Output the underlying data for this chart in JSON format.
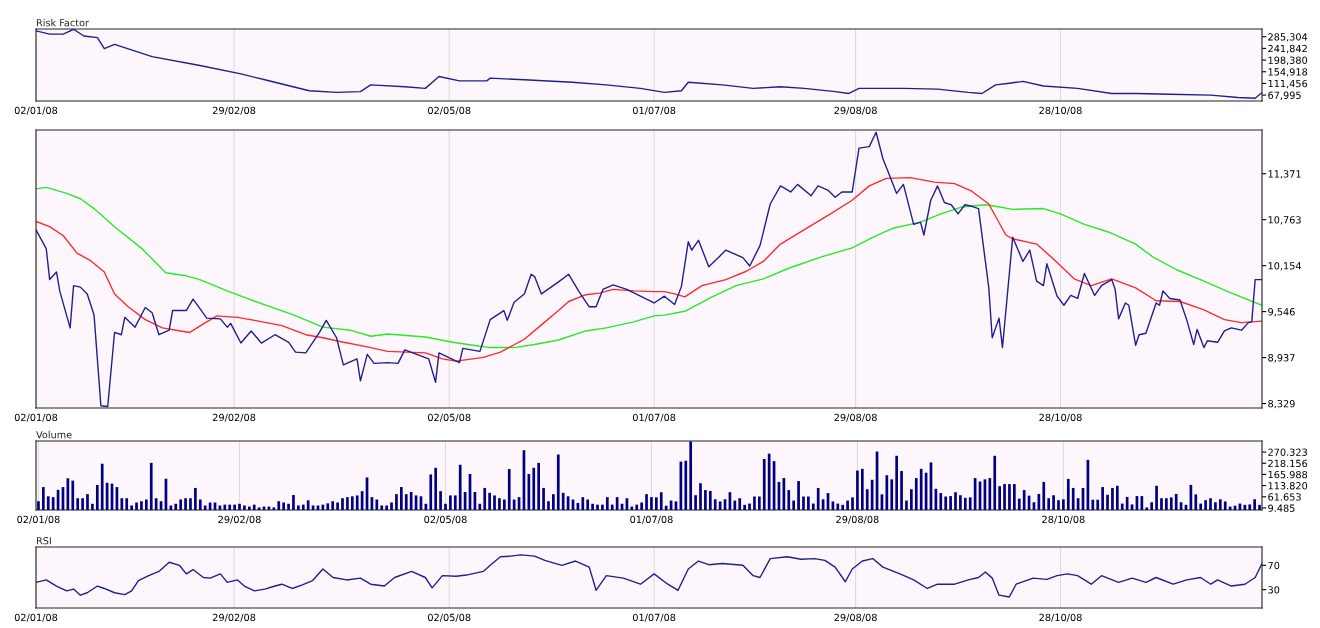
{
  "chart_data": [
    {
      "type": "line",
      "title": "Risk Factor",
      "grid": "x",
      "xlim": [
        "2008-01-02",
        "2008-12-26"
      ],
      "ylim": [
        46000,
        314000
      ],
      "xticks": [
        {
          "value": "2008-01-02",
          "label": "02/01/08"
        },
        {
          "value": "2008-02-29",
          "label": "29/02/08"
        },
        {
          "value": "2008-05-02",
          "label": "02/05/08"
        },
        {
          "value": "2008-07-01",
          "label": "01/07/08"
        },
        {
          "value": "2008-08-29",
          "label": "29/08/08"
        },
        {
          "value": "2008-10-28",
          "label": "28/10/08"
        }
      ],
      "yticks": [
        {
          "value": 67995,
          "label": "67,995"
        },
        {
          "value": 111456,
          "label": "111,456"
        },
        {
          "value": 154918,
          "label": "154,918"
        },
        {
          "value": 198380,
          "label": "198,380"
        },
        {
          "value": 241842,
          "label": "241,842"
        },
        {
          "value": 285304,
          "label": "285,304"
        }
      ],
      "series": [
        {
          "color": "#1f1f8f",
          "x": [
            "2008-01-02",
            "2008-01-06",
            "2008-01-10",
            "2008-01-13",
            "2008-01-16",
            "2008-01-20",
            "2008-01-22",
            "2008-01-25",
            "2008-02-05",
            "2008-02-19",
            "2008-03-02",
            "2008-03-09",
            "2008-03-22",
            "2008-03-30",
            "2008-04-06",
            "2008-04-09",
            "2008-04-19",
            "2008-04-25",
            "2008-04-29",
            "2008-05-05",
            "2008-05-13",
            "2008-05-14",
            "2008-05-24",
            "2008-06-07",
            "2008-06-17",
            "2008-06-27",
            "2008-07-04",
            "2008-07-09",
            "2008-07-11",
            "2008-07-21",
            "2008-07-30",
            "2008-08-07",
            "2008-08-14",
            "2008-08-23",
            "2008-08-27",
            "2008-08-30",
            "2008-09-12",
            "2008-09-22",
            "2008-10-01",
            "2008-10-05",
            "2008-10-09",
            "2008-10-13",
            "2008-10-17",
            "2008-10-23",
            "2008-11-02",
            "2008-11-12",
            "2008-11-19",
            "2008-11-29",
            "2008-12-11",
            "2008-12-19",
            "2008-12-24",
            "2008-12-26"
          ],
          "values": [
            307000,
            295000,
            295000,
            313000,
            288000,
            282000,
            241000,
            257000,
            211000,
            178000,
            147000,
            125000,
            84000,
            78000,
            81000,
            106000,
            99000,
            93000,
            137000,
            121000,
            121000,
            131000,
            125000,
            116000,
            106000,
            93000,
            78000,
            84000,
            116000,
            106000,
            93000,
            99000,
            93000,
            81000,
            74000,
            93000,
            93000,
            90000,
            78000,
            74000,
            106000,
            112000,
            119000,
            102000,
            93000,
            74000,
            74000,
            71000,
            68000,
            59000,
            56000,
            78000
          ]
        }
      ]
    },
    {
      "type": "line",
      "grid": "x",
      "xlim": [
        "2008-01-02",
        "2008-12-26"
      ],
      "ylim": [
        8270,
        11950
      ],
      "xticks": [
        {
          "value": "2008-01-02",
          "label": "02/01/08"
        },
        {
          "value": "2008-02-29",
          "label": "29/02/08"
        },
        {
          "value": "2008-05-02",
          "label": "02/05/08"
        },
        {
          "value": "2008-07-01",
          "label": "01/07/08"
        },
        {
          "value": "2008-08-29",
          "label": "29/08/08"
        },
        {
          "value": "2008-10-28",
          "label": "28/10/08"
        }
      ],
      "yticks": [
        {
          "value": 8329,
          "label": "8,329"
        },
        {
          "value": 8937,
          "label": "8,937"
        },
        {
          "value": 9546,
          "label": "9,546"
        },
        {
          "value": 10154,
          "label": "10,154"
        },
        {
          "value": 10763,
          "label": "10,763"
        },
        {
          "value": 11371,
          "label": "11,371"
        }
      ],
      "series": [
        {
          "color": "#22ee22",
          "x": [
            "2008-01-02",
            "2008-01-05",
            "2008-01-11",
            "2008-01-15",
            "2008-01-19",
            "2008-01-25",
            "2008-02-02",
            "2008-02-09",
            "2008-02-15",
            "2008-02-19",
            "2008-02-27",
            "2008-03-05",
            "2008-03-17",
            "2008-03-26",
            "2008-04-03",
            "2008-04-09",
            "2008-04-14",
            "2008-04-25",
            "2008-05-03",
            "2008-05-09",
            "2008-05-14",
            "2008-05-21",
            "2008-05-27",
            "2008-06-03",
            "2008-06-11",
            "2008-06-17",
            "2008-06-25",
            "2008-07-01",
            "2008-07-04",
            "2008-07-10",
            "2008-07-18",
            "2008-07-25",
            "2008-08-02",
            "2008-08-10",
            "2008-08-19",
            "2008-08-28",
            "2008-09-03",
            "2008-09-09",
            "2008-09-17",
            "2008-09-23",
            "2008-09-29",
            "2008-10-06",
            "2008-10-09",
            "2008-10-14",
            "2008-10-23",
            "2008-10-28",
            "2008-11-04",
            "2008-11-11",
            "2008-11-19",
            "2008-11-24",
            "2008-12-01",
            "2008-12-09",
            "2008-12-16",
            "2008-12-26"
          ],
          "values": [
            11170,
            11190,
            11110,
            11040,
            10910,
            10670,
            10380,
            10060,
            10020,
            9970,
            9820,
            9700,
            9510,
            9340,
            9300,
            9220,
            9250,
            9210,
            9140,
            9100,
            9070,
            9070,
            9110,
            9170,
            9290,
            9330,
            9410,
            9490,
            9500,
            9550,
            9740,
            9890,
            9980,
            10130,
            10270,
            10390,
            10530,
            10650,
            10730,
            10840,
            10930,
            10960,
            10940,
            10900,
            10910,
            10840,
            10700,
            10600,
            10440,
            10270,
            10100,
            9950,
            9810,
            9630
          ]
        },
        {
          "color": "#ff2a2a",
          "x": [
            "2008-01-02",
            "2008-01-06",
            "2008-01-10",
            "2008-01-14",
            "2008-01-18",
            "2008-01-22",
            "2008-01-25",
            "2008-01-29",
            "2008-02-03",
            "2008-02-08",
            "2008-02-12",
            "2008-02-16",
            "2008-02-21",
            "2008-02-24",
            "2008-03-01",
            "2008-03-06",
            "2008-03-14",
            "2008-03-21",
            "2008-03-26",
            "2008-03-31",
            "2008-04-08",
            "2008-04-14",
            "2008-04-25",
            "2008-04-30",
            "2008-05-04",
            "2008-05-12",
            "2008-05-17",
            "2008-05-24",
            "2008-05-29",
            "2008-06-03",
            "2008-06-06",
            "2008-06-11",
            "2008-06-15",
            "2008-06-19",
            "2008-06-25",
            "2008-07-01",
            "2008-07-04",
            "2008-07-07",
            "2008-07-10",
            "2008-07-15",
            "2008-07-22",
            "2008-07-28",
            "2008-08-02",
            "2008-08-07",
            "2008-08-14",
            "2008-08-22",
            "2008-08-28",
            "2008-09-02",
            "2008-09-07",
            "2008-09-14",
            "2008-09-21",
            "2008-09-27",
            "2008-10-02",
            "2008-10-07",
            "2008-10-12",
            "2008-10-14",
            "2008-10-21",
            "2008-10-26",
            "2008-11-01",
            "2008-11-06",
            "2008-11-12",
            "2008-11-19",
            "2008-11-25",
            "2008-12-02",
            "2008-12-09",
            "2008-12-15",
            "2008-12-20",
            "2008-12-26"
          ],
          "values": [
            10740,
            10670,
            10550,
            10320,
            10220,
            10070,
            9780,
            9610,
            9440,
            9330,
            9300,
            9270,
            9410,
            9490,
            9470,
            9430,
            9360,
            9240,
            9200,
            9150,
            9080,
            9020,
            9000,
            8920,
            8890,
            8940,
            9010,
            9180,
            9370,
            9560,
            9680,
            9770,
            9790,
            9840,
            9820,
            9810,
            9810,
            9780,
            9740,
            9890,
            9970,
            10080,
            10210,
            10440,
            10630,
            10850,
            11020,
            11210,
            11310,
            11320,
            11260,
            11240,
            11140,
            10970,
            10560,
            10510,
            10440,
            10240,
            9980,
            9890,
            9980,
            9860,
            9690,
            9680,
            9570,
            9440,
            9400,
            9420
          ]
        },
        {
          "color": "#1f1f8f",
          "x": [
            "2008-01-02",
            "2008-01-05",
            "2008-01-06",
            "2008-01-08",
            "2008-01-09",
            "2008-01-12",
            "2008-01-13",
            "2008-01-15",
            "2008-01-17",
            "2008-01-19",
            "2008-01-21",
            "2008-01-23",
            "2008-01-25",
            "2008-01-27",
            "2008-01-28",
            "2008-01-31",
            "2008-02-03",
            "2008-02-05",
            "2008-02-07",
            "2008-02-10",
            "2008-02-11",
            "2008-02-15",
            "2008-02-17",
            "2008-02-21",
            "2008-02-25",
            "2008-02-27",
            "2008-02-28",
            "2008-03-02",
            "2008-03-05",
            "2008-03-08",
            "2008-03-12",
            "2008-03-16",
            "2008-03-18",
            "2008-03-21",
            "2008-03-25",
            "2008-03-27",
            "2008-03-30",
            "2008-04-01",
            "2008-04-05",
            "2008-04-06",
            "2008-04-08",
            "2008-04-10",
            "2008-04-14",
            "2008-04-17",
            "2008-04-19",
            "2008-04-26",
            "2008-04-28",
            "2008-04-29",
            "2008-05-05",
            "2008-05-06",
            "2008-05-11",
            "2008-05-14",
            "2008-05-18",
            "2008-05-19",
            "2008-05-21",
            "2008-05-24",
            "2008-05-26",
            "2008-05-27",
            "2008-05-29",
            "2008-06-03",
            "2008-06-06",
            "2008-06-09",
            "2008-06-12",
            "2008-06-14",
            "2008-06-16",
            "2008-06-19",
            "2008-06-23",
            "2008-06-27",
            "2008-07-01",
            "2008-07-04",
            "2008-07-07",
            "2008-07-09",
            "2008-07-11",
            "2008-07-12",
            "2008-07-14",
            "2008-07-17",
            "2008-07-20",
            "2008-07-22",
            "2008-07-27",
            "2008-07-29",
            "2008-08-01",
            "2008-08-04",
            "2008-08-07",
            "2008-08-10",
            "2008-08-12",
            "2008-08-16",
            "2008-08-18",
            "2008-08-21",
            "2008-08-23",
            "2008-08-25",
            "2008-08-28",
            "2008-08-30",
            "2008-09-02",
            "2008-09-04",
            "2008-09-06",
            "2008-09-08",
            "2008-09-10",
            "2008-09-12",
            "2008-09-15",
            "2008-09-17",
            "2008-09-18",
            "2008-09-20",
            "2008-09-22",
            "2008-09-24",
            "2008-09-26",
            "2008-09-28",
            "2008-09-30",
            "2008-10-02",
            "2008-10-04",
            "2008-10-07",
            "2008-10-08",
            "2008-10-10",
            "2008-10-11",
            "2008-10-14",
            "2008-10-17",
            "2008-10-19",
            "2008-10-21",
            "2008-10-23",
            "2008-10-24",
            "2008-10-27",
            "2008-10-29",
            "2008-10-31",
            "2008-11-02",
            "2008-11-04",
            "2008-11-07",
            "2008-11-09",
            "2008-11-12",
            "2008-11-13",
            "2008-11-14",
            "2008-11-16",
            "2008-11-17",
            "2008-11-19",
            "2008-11-20",
            "2008-11-22",
            "2008-11-25",
            "2008-11-26",
            "2008-11-27",
            "2008-11-29",
            "2008-12-02",
            "2008-12-04",
            "2008-12-06",
            "2008-12-07",
            "2008-12-09",
            "2008-12-10",
            "2008-12-13",
            "2008-12-15",
            "2008-12-17",
            "2008-12-20",
            "2008-12-22",
            "2008-12-23",
            "2008-12-24",
            "2008-12-26"
          ],
          "values": [
            10630,
            10380,
            9970,
            10070,
            9810,
            9330,
            9890,
            9870,
            9780,
            9500,
            8300,
            8290,
            9270,
            9240,
            9470,
            9340,
            9600,
            9530,
            9240,
            9300,
            9560,
            9560,
            9710,
            9460,
            9450,
            9340,
            9390,
            9130,
            9290,
            9130,
            9240,
            9140,
            9010,
            9000,
            9270,
            9430,
            9200,
            8840,
            8920,
            8630,
            8980,
            8860,
            8870,
            8860,
            9040,
            8920,
            8610,
            9000,
            8870,
            9060,
            9020,
            9440,
            9560,
            9430,
            9670,
            9780,
            10040,
            10010,
            9780,
            9940,
            10040,
            9810,
            9610,
            9610,
            9840,
            9900,
            9840,
            9750,
            9660,
            9750,
            9640,
            9880,
            10470,
            10360,
            10490,
            10140,
            10270,
            10360,
            10260,
            10150,
            10420,
            10970,
            11210,
            11130,
            11230,
            11080,
            11210,
            11150,
            11060,
            11130,
            11130,
            11710,
            11730,
            11920,
            11570,
            11340,
            11110,
            11230,
            10700,
            10730,
            10560,
            11020,
            11210,
            10990,
            10960,
            10840,
            10960,
            10940,
            10910,
            9860,
            9200,
            9460,
            9070,
            10530,
            10210,
            10360,
            9950,
            9890,
            10180,
            9750,
            9630,
            9760,
            9720,
            10050,
            9760,
            9890,
            9970,
            9840,
            9450,
            9660,
            9630,
            9100,
            9240,
            9260,
            9660,
            9630,
            9820,
            9720,
            9700,
            9430,
            9110,
            9310,
            9070,
            9160,
            9140,
            9290,
            9330,
            9300,
            9400,
            9410,
            9970,
            9970
          ]
        }
      ]
    },
    {
      "type": "bar",
      "title": "Volume",
      "grid": "x",
      "color": "#000080",
      "ylim": [
        0,
        322
      ],
      "yticks": [
        {
          "value": 9.485,
          "label": "9.485"
        },
        {
          "value": 61.653,
          "label": "61.653"
        },
        {
          "value": 113.82,
          "label": "113.820"
        },
        {
          "value": 165.988,
          "label": "165.988"
        },
        {
          "value": 218.156,
          "label": "218.156"
        },
        {
          "value": 270.323,
          "label": "270.323"
        }
      ],
      "categories": [
        "02/01/08",
        null,
        null,
        null,
        null,
        null,
        null,
        null,
        null,
        null,
        null,
        null,
        null,
        null,
        null,
        null,
        null,
        null,
        null,
        null,
        null,
        null,
        null,
        null,
        null,
        null,
        null,
        null,
        null,
        null,
        null,
        null,
        null,
        null,
        null,
        null,
        null,
        null,
        null,
        null,
        null,
        "29/02/08",
        null,
        null,
        null,
        null,
        null,
        null,
        null,
        null,
        null,
        null,
        null,
        null,
        null,
        null,
        null,
        null,
        null,
        null,
        null,
        null,
        null,
        null,
        null,
        null,
        null,
        null,
        null,
        null,
        null,
        null,
        null,
        null,
        null,
        null,
        null,
        null,
        null,
        null,
        null,
        null,
        null,
        "02/05/08",
        null,
        null,
        null,
        null,
        null,
        null,
        null,
        null,
        null,
        null,
        null,
        null,
        null,
        null,
        null,
        null,
        null,
        null,
        null,
        null,
        null,
        null,
        null,
        null,
        null,
        null,
        null,
        null,
        null,
        null,
        null,
        null,
        null,
        null,
        null,
        null,
        null,
        null,
        null,
        null,
        null,
        "01/07/08",
        null,
        null,
        null,
        null,
        null,
        null,
        null,
        null,
        null,
        null,
        null,
        null,
        null,
        null,
        null,
        null,
        null,
        null,
        null,
        null,
        null,
        null,
        null,
        null,
        null,
        null,
        null,
        null,
        null,
        null,
        null,
        null,
        null,
        null,
        null,
        null,
        null,
        null,
        null,
        null,
        null,
        "29/08/08",
        null,
        null,
        null,
        null,
        null,
        null,
        null,
        null,
        null,
        null,
        null,
        null,
        null,
        null,
        null,
        null,
        null,
        null,
        null,
        null,
        null,
        null,
        null,
        null,
        null,
        null,
        null,
        null,
        null,
        null,
        null,
        null,
        null,
        null,
        null,
        null,
        null,
        null,
        null,
        null,
        null,
        "28/10/08",
        null,
        null,
        null,
        null,
        null,
        null,
        null,
        null,
        null,
        null,
        null,
        null,
        null,
        null,
        null,
        null,
        null,
        null,
        null,
        null,
        null,
        null,
        null,
        null,
        null,
        null,
        null,
        null,
        null,
        null,
        null,
        null,
        null,
        null,
        null,
        null,
        null,
        null,
        null,
        null
      ],
      "values": [
        41,
        107,
        64,
        60,
        94,
        107,
        148,
        137,
        55,
        55,
        74,
        29,
        117,
        216,
        127,
        123,
        107,
        55,
        55,
        21,
        35,
        41,
        49,
        220,
        55,
        41,
        146,
        21,
        29,
        49,
        55,
        55,
        103,
        49,
        21,
        35,
        35,
        21,
        25,
        25,
        25,
        29,
        21,
        16,
        25,
        12,
        16,
        16,
        12,
        41,
        35,
        29,
        70,
        21,
        25,
        45,
        21,
        21,
        25,
        31,
        41,
        35,
        55,
        60,
        64,
        68,
        88,
        152,
        60,
        49,
        21,
        21,
        35,
        74,
        107,
        74,
        84,
        68,
        64,
        29,
        166,
        197,
        88,
        29,
        68,
        68,
        211,
        84,
        168,
        84,
        29,
        103,
        80,
        68,
        55,
        49,
        191,
        49,
        60,
        279,
        168,
        197,
        220,
        103,
        41,
        74,
        259,
        80,
        64,
        49,
        33,
        60,
        49,
        29,
        25,
        25,
        60,
        25,
        60,
        29,
        55,
        16,
        25,
        35,
        74,
        60,
        59,
        83,
        20,
        44,
        40,
        226,
        230,
        320,
        69,
        125,
        93,
        89,
        50,
        40,
        50,
        83,
        44,
        55,
        24,
        30,
        63,
        63,
        238,
        263,
        228,
        131,
        149,
        93,
        44,
        135,
        63,
        63,
        30,
        103,
        50,
        79,
        40,
        30,
        24,
        44,
        59,
        184,
        192,
        97,
        141,
        273,
        73,
        162,
        143,
        253,
        182,
        44,
        97,
        149,
        192,
        174,
        222,
        99,
        79,
        63,
        65,
        83,
        69,
        57,
        59,
        149,
        133,
        143,
        149,
        253,
        111,
        121,
        121,
        121,
        53,
        93,
        67,
        36,
        75,
        131,
        55,
        69,
        46,
        50,
        145,
        103,
        55,
        103,
        234,
        48,
        48,
        107,
        71,
        103,
        113,
        30,
        61,
        26,
        65,
        65,
        12,
        36,
        113,
        55,
        55,
        59,
        75,
        36,
        24,
        117,
        73,
        30,
        46,
        55,
        36,
        50,
        40,
        16,
        20,
        30,
        24,
        26,
        50,
        24
      ]
    },
    {
      "type": "line",
      "title": "RSI",
      "grid": "x",
      "xlim": [
        "2008-01-02",
        "2008-12-26"
      ],
      "ylim": [
        0,
        100
      ],
      "xticks": [
        {
          "value": "2008-01-02",
          "label": "02/01/08"
        },
        {
          "value": "2008-02-29",
          "label": "29/02/08"
        },
        {
          "value": "2008-05-02",
          "label": "02/05/08"
        },
        {
          "value": "2008-07-01",
          "label": "01/07/08"
        },
        {
          "value": "2008-08-29",
          "label": "29/08/08"
        },
        {
          "value": "2008-10-28",
          "label": "28/10/08"
        }
      ],
      "yticks": [
        30,
        70
      ],
      "series": [
        {
          "color": "#1f1f8f",
          "x": [
            "2008-01-02",
            "2008-01-05",
            "2008-01-08",
            "2008-01-11",
            "2008-01-13",
            "2008-01-15",
            "2008-01-17",
            "2008-01-20",
            "2008-01-22",
            "2008-01-25",
            "2008-01-28",
            "2008-01-30",
            "2008-02-01",
            "2008-02-04",
            "2008-02-07",
            "2008-02-10",
            "2008-02-13",
            "2008-02-15",
            "2008-02-17",
            "2008-02-20",
            "2008-02-22",
            "2008-02-25",
            "2008-02-27",
            "2008-03-01",
            "2008-03-03",
            "2008-03-06",
            "2008-03-09",
            "2008-03-12",
            "2008-03-14",
            "2008-03-17",
            "2008-03-20",
            "2008-03-23",
            "2008-03-26",
            "2008-03-29",
            "2008-04-02",
            "2008-04-06",
            "2008-04-09",
            "2008-04-13",
            "2008-04-16",
            "2008-04-21",
            "2008-04-25",
            "2008-04-27",
            "2008-04-30",
            "2008-05-04",
            "2008-05-07",
            "2008-05-12",
            "2008-05-14",
            "2008-05-17",
            "2008-05-20",
            "2008-05-23",
            "2008-05-27",
            "2008-05-30",
            "2008-06-04",
            "2008-06-08",
            "2008-06-12",
            "2008-06-14",
            "2008-06-17",
            "2008-06-22",
            "2008-06-27",
            "2008-07-01",
            "2008-07-05",
            "2008-07-08",
            "2008-07-11",
            "2008-07-14",
            "2008-07-17",
            "2008-07-21",
            "2008-07-27",
            "2008-07-30",
            "2008-08-01",
            "2008-08-04",
            "2008-08-09",
            "2008-08-13",
            "2008-08-17",
            "2008-08-20",
            "2008-08-23",
            "2008-08-26",
            "2008-08-28",
            "2008-08-31",
            "2008-09-03",
            "2008-09-06",
            "2008-09-11",
            "2008-09-15",
            "2008-09-19",
            "2008-09-22",
            "2008-09-27",
            "2008-10-01",
            "2008-10-04",
            "2008-10-06",
            "2008-10-08",
            "2008-10-10",
            "2008-10-13",
            "2008-10-15",
            "2008-10-20",
            "2008-10-24",
            "2008-10-27",
            "2008-10-30",
            "2008-11-02",
            "2008-11-06",
            "2008-11-09",
            "2008-11-14",
            "2008-11-18",
            "2008-11-22",
            "2008-11-25",
            "2008-11-30",
            "2008-12-04",
            "2008-12-08",
            "2008-12-11",
            "2008-12-13",
            "2008-12-17",
            "2008-12-21",
            "2008-12-24",
            "2008-12-26"
          ],
          "values": [
            42,
            46,
            36,
            28,
            31,
            21,
            25,
            36,
            32,
            25,
            22,
            28,
            45,
            53,
            60,
            75,
            70,
            56,
            63,
            50,
            49,
            56,
            42,
            46,
            36,
            28,
            31,
            36,
            39,
            32,
            38,
            45,
            64,
            50,
            46,
            49,
            39,
            36,
            50,
            60,
            50,
            33,
            53,
            52,
            54,
            60,
            70,
            84,
            85,
            87,
            85,
            78,
            70,
            77,
            67,
            29,
            53,
            49,
            39,
            56,
            39,
            29,
            64,
            77,
            71,
            73,
            70,
            53,
            50,
            81,
            84,
            80,
            81,
            78,
            67,
            43,
            64,
            77,
            81,
            67,
            56,
            46,
            32,
            39,
            39,
            46,
            50,
            59,
            49,
            21,
            18,
            39,
            49,
            47,
            53,
            56,
            53,
            39,
            53,
            42,
            49,
            42,
            50,
            39,
            46,
            50,
            39,
            46,
            36,
            39,
            50,
            73
          ]
        }
      ]
    }
  ]
}
